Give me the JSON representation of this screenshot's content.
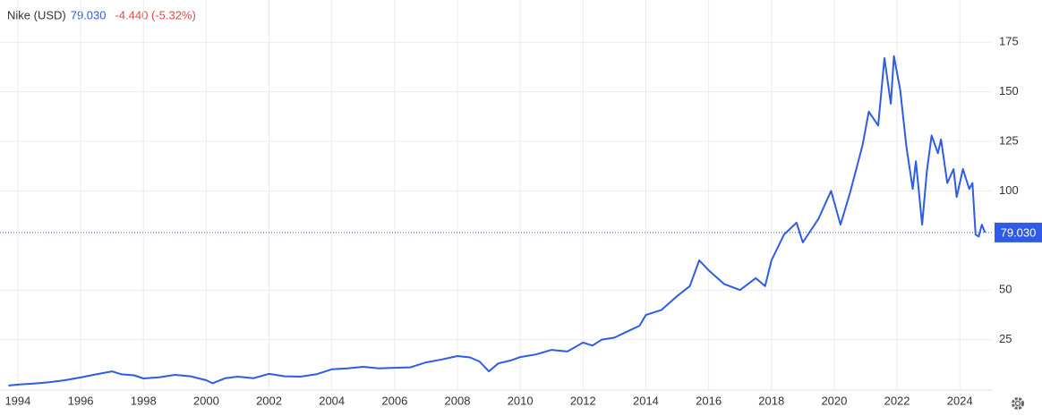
{
  "chart_data": {
    "type": "line",
    "title": "Nike (USD)",
    "last": {
      "value": 79.03,
      "label": "79.030"
    },
    "change": "-4.440 (-5.32%)",
    "color": "#2e5ce6",
    "grid": true,
    "y_axis_side": "right",
    "x": [
      1993.7,
      1994.0,
      1994.5,
      1995.0,
      1995.5,
      1996.0,
      1996.5,
      1997.0,
      1997.3,
      1997.7,
      1998.0,
      1998.5,
      1999.0,
      1999.5,
      2000.0,
      2000.2,
      2000.6,
      2001.0,
      2001.5,
      2002.0,
      2002.5,
      2003.0,
      2003.5,
      2004.0,
      2004.5,
      2005.0,
      2005.5,
      2006.0,
      2006.5,
      2007.0,
      2007.5,
      2008.0,
      2008.4,
      2008.7,
      2009.0,
      2009.3,
      2009.7,
      2010.0,
      2010.5,
      2011.0,
      2011.5,
      2012.0,
      2012.3,
      2012.6,
      2013.0,
      2013.4,
      2013.8,
      2014.0,
      2014.5,
      2015.0,
      2015.4,
      2015.7,
      2016.0,
      2016.5,
      2017.0,
      2017.5,
      2017.8,
      2018.0,
      2018.4,
      2018.8,
      2019.0,
      2019.5,
      2019.9,
      2020.2,
      2020.5,
      2020.9,
      2021.1,
      2021.4,
      2021.6,
      2021.8,
      2021.9,
      2022.1,
      2022.3,
      2022.5,
      2022.6,
      2022.8,
      2022.95,
      2023.1,
      2023.3,
      2023.4,
      2023.6,
      2023.8,
      2023.9,
      2024.1,
      2024.3,
      2024.4,
      2024.5,
      2024.6,
      2024.7,
      2024.8
    ],
    "values": [
      1.8,
      2.3,
      2.8,
      3.5,
      4.5,
      5.9,
      7.5,
      9,
      7.5,
      7,
      5.4,
      6,
      7.2,
      6.5,
      4.5,
      3,
      5.5,
      6.3,
      5.5,
      7.7,
      6.5,
      6.3,
      7.5,
      10,
      10.5,
      11.3,
      10.5,
      10.8,
      11,
      13.5,
      15,
      16.7,
      16,
      14,
      9,
      13,
      14.5,
      16.2,
      17.5,
      19.8,
      19,
      23.5,
      22,
      25,
      26,
      29,
      32,
      37.4,
      40,
      47,
      52,
      65,
      60,
      53,
      50,
      56,
      52,
      65,
      78,
      84,
      74,
      86,
      100,
      83,
      99,
      123,
      140,
      133,
      167,
      144,
      168,
      151,
      122,
      101,
      115,
      83,
      110,
      128,
      119,
      126,
      104,
      111,
      97,
      111,
      101,
      104,
      78,
      77,
      83,
      79.03
    ],
    "xlim": [
      1993.66,
      2025.02
    ],
    "ylim": [
      0,
      190
    ],
    "xticks": [
      1994,
      1996,
      1998,
      2000,
      2002,
      2004,
      2006,
      2008,
      2010,
      2012,
      2014,
      2016,
      2018,
      2020,
      2022,
      2024
    ],
    "yticks": [
      25,
      50,
      100,
      125,
      150,
      175
    ]
  }
}
